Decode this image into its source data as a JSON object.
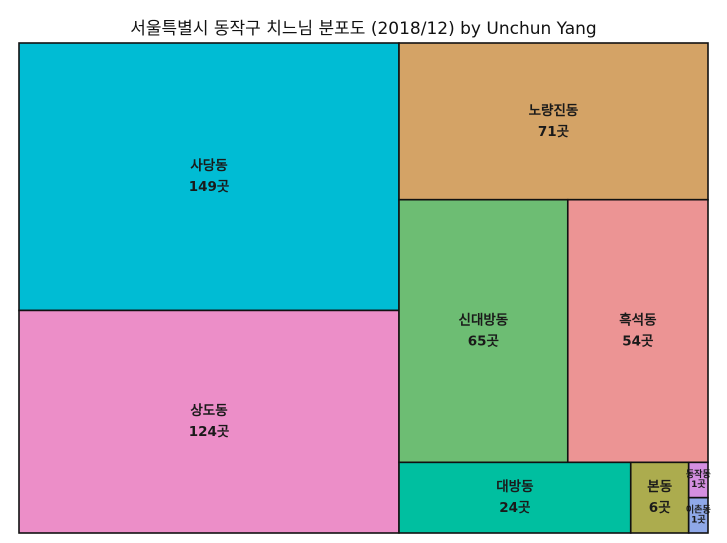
{
  "chart_data": {
    "type": "treemap",
    "title": "서울특별시 동작구 치느님 분포도 (2018/12) by Unchun Yang",
    "value_suffix": "곳",
    "items": [
      {
        "name": "사당동",
        "value": 149,
        "color": "#00bcd4"
      },
      {
        "name": "상도동",
        "value": 124,
        "color": "#ec8ec8"
      },
      {
        "name": "노량진동",
        "value": 71,
        "color": "#d4a366"
      },
      {
        "name": "신대방동",
        "value": 65,
        "color": "#6dbd73"
      },
      {
        "name": "흑석동",
        "value": 54,
        "color": "#ec9494"
      },
      {
        "name": "대방동",
        "value": 24,
        "color": "#00bfa0"
      },
      {
        "name": "본동",
        "value": 6,
        "color": "#acac4e"
      },
      {
        "name": "동작동",
        "value": 1,
        "color": "#d48fe0"
      },
      {
        "name": "이촌동",
        "value": 1,
        "color": "#8fa8e8"
      }
    ]
  }
}
